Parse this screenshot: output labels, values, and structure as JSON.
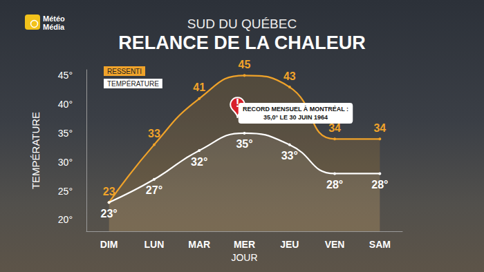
{
  "chart_data": {
    "type": "line",
    "logo": [
      "Météo",
      "Média"
    ],
    "subtitle": "SUD DU QUÉBEC",
    "title": "RELANCE DE LA CHALEUR",
    "x_label": "JOUR",
    "y_label": "TEMPÉRATURE",
    "categories": [
      "DIM",
      "LUN",
      "MAR",
      "MER",
      "JEU",
      "VEN",
      "SAM"
    ],
    "series": [
      {
        "name": "RESSENTI",
        "color": "#f0a32a",
        "values": [
          23,
          33,
          41,
          45,
          43,
          34,
          34
        ],
        "data_labels": true
      },
      {
        "name": "TEMPÉRATURE",
        "color": "#ffffff",
        "values": [
          23,
          27,
          32,
          35,
          33,
          28,
          28
        ],
        "value_labels": [
          "23°",
          "27°",
          "32°",
          "35°",
          "33°",
          "28°",
          "28°"
        ],
        "data_labels": true
      }
    ],
    "ylim": [
      18,
      46
    ],
    "yticks": [
      {
        "value": 20,
        "label": "20°"
      },
      {
        "value": 25,
        "label": "25°"
      },
      {
        "value": 30,
        "label": "30°"
      },
      {
        "value": 35,
        "label": "35°"
      },
      {
        "value": 40,
        "label": "40°"
      },
      {
        "value": 45,
        "label": "45°"
      }
    ],
    "grid": false,
    "legend": "upper left",
    "marker": "circle",
    "line_style": "solid",
    "annotation": {
      "category": "MER",
      "series": "TEMPÉRATURE",
      "icon": "!",
      "text": [
        "RECORD MENSUEL À MONTRÉAL :",
        "35,0° LE 30 JUIN 1964"
      ]
    }
  }
}
